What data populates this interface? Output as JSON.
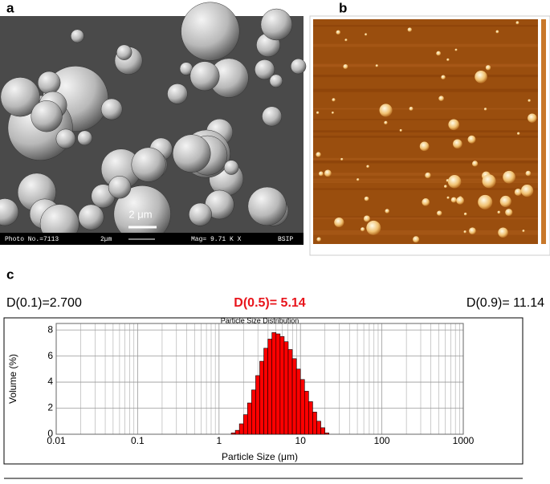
{
  "figure": {
    "panel_labels": [
      "a",
      "b",
      "c"
    ],
    "sem": {
      "scale_bar": "2 μm",
      "info": [
        "Photo No.=7113",
        "2μm",
        "Mag= 9.71 K X",
        "BSIP"
      ]
    }
  },
  "chart_data": {
    "type": "histogram",
    "title": "Particle Size Distribution",
    "x_label": "Particle Size (μm)",
    "y_label": "Volume (%)",
    "annotations": [
      "D(0.1)=2.700",
      "D(0.5)= 5.14",
      "D(0.9)= 11.14"
    ],
    "annotation_colors": [
      "#000000",
      "#e8141b",
      "#000000"
    ],
    "bins": [
      1.413,
      1.585,
      1.778,
      1.995,
      2.239,
      2.512,
      2.818,
      3.162,
      3.548,
      3.981,
      4.467,
      5.012,
      5.623,
      6.31,
      7.079,
      7.943,
      8.913,
      10.0,
      11.22,
      12.59,
      14.13,
      15.85,
      17.78,
      19.95,
      22.39
    ],
    "values": [
      0.1,
      0.3,
      0.8,
      1.5,
      2.4,
      3.4,
      4.5,
      5.6,
      6.6,
      7.3,
      7.8,
      7.7,
      7.5,
      7.1,
      6.5,
      5.8,
      5.0,
      4.2,
      3.3,
      2.5,
      1.7,
      1.0,
      0.5,
      0.1
    ],
    "color": "#ff0000",
    "x_log": true,
    "xlim": [
      0.01,
      1000
    ],
    "xticks": [
      0.01,
      0.1,
      1,
      10,
      100,
      1000
    ],
    "ylim": [
      0,
      8.5
    ],
    "yticks": [
      0,
      2,
      4,
      6,
      8
    ],
    "grid": true
  }
}
